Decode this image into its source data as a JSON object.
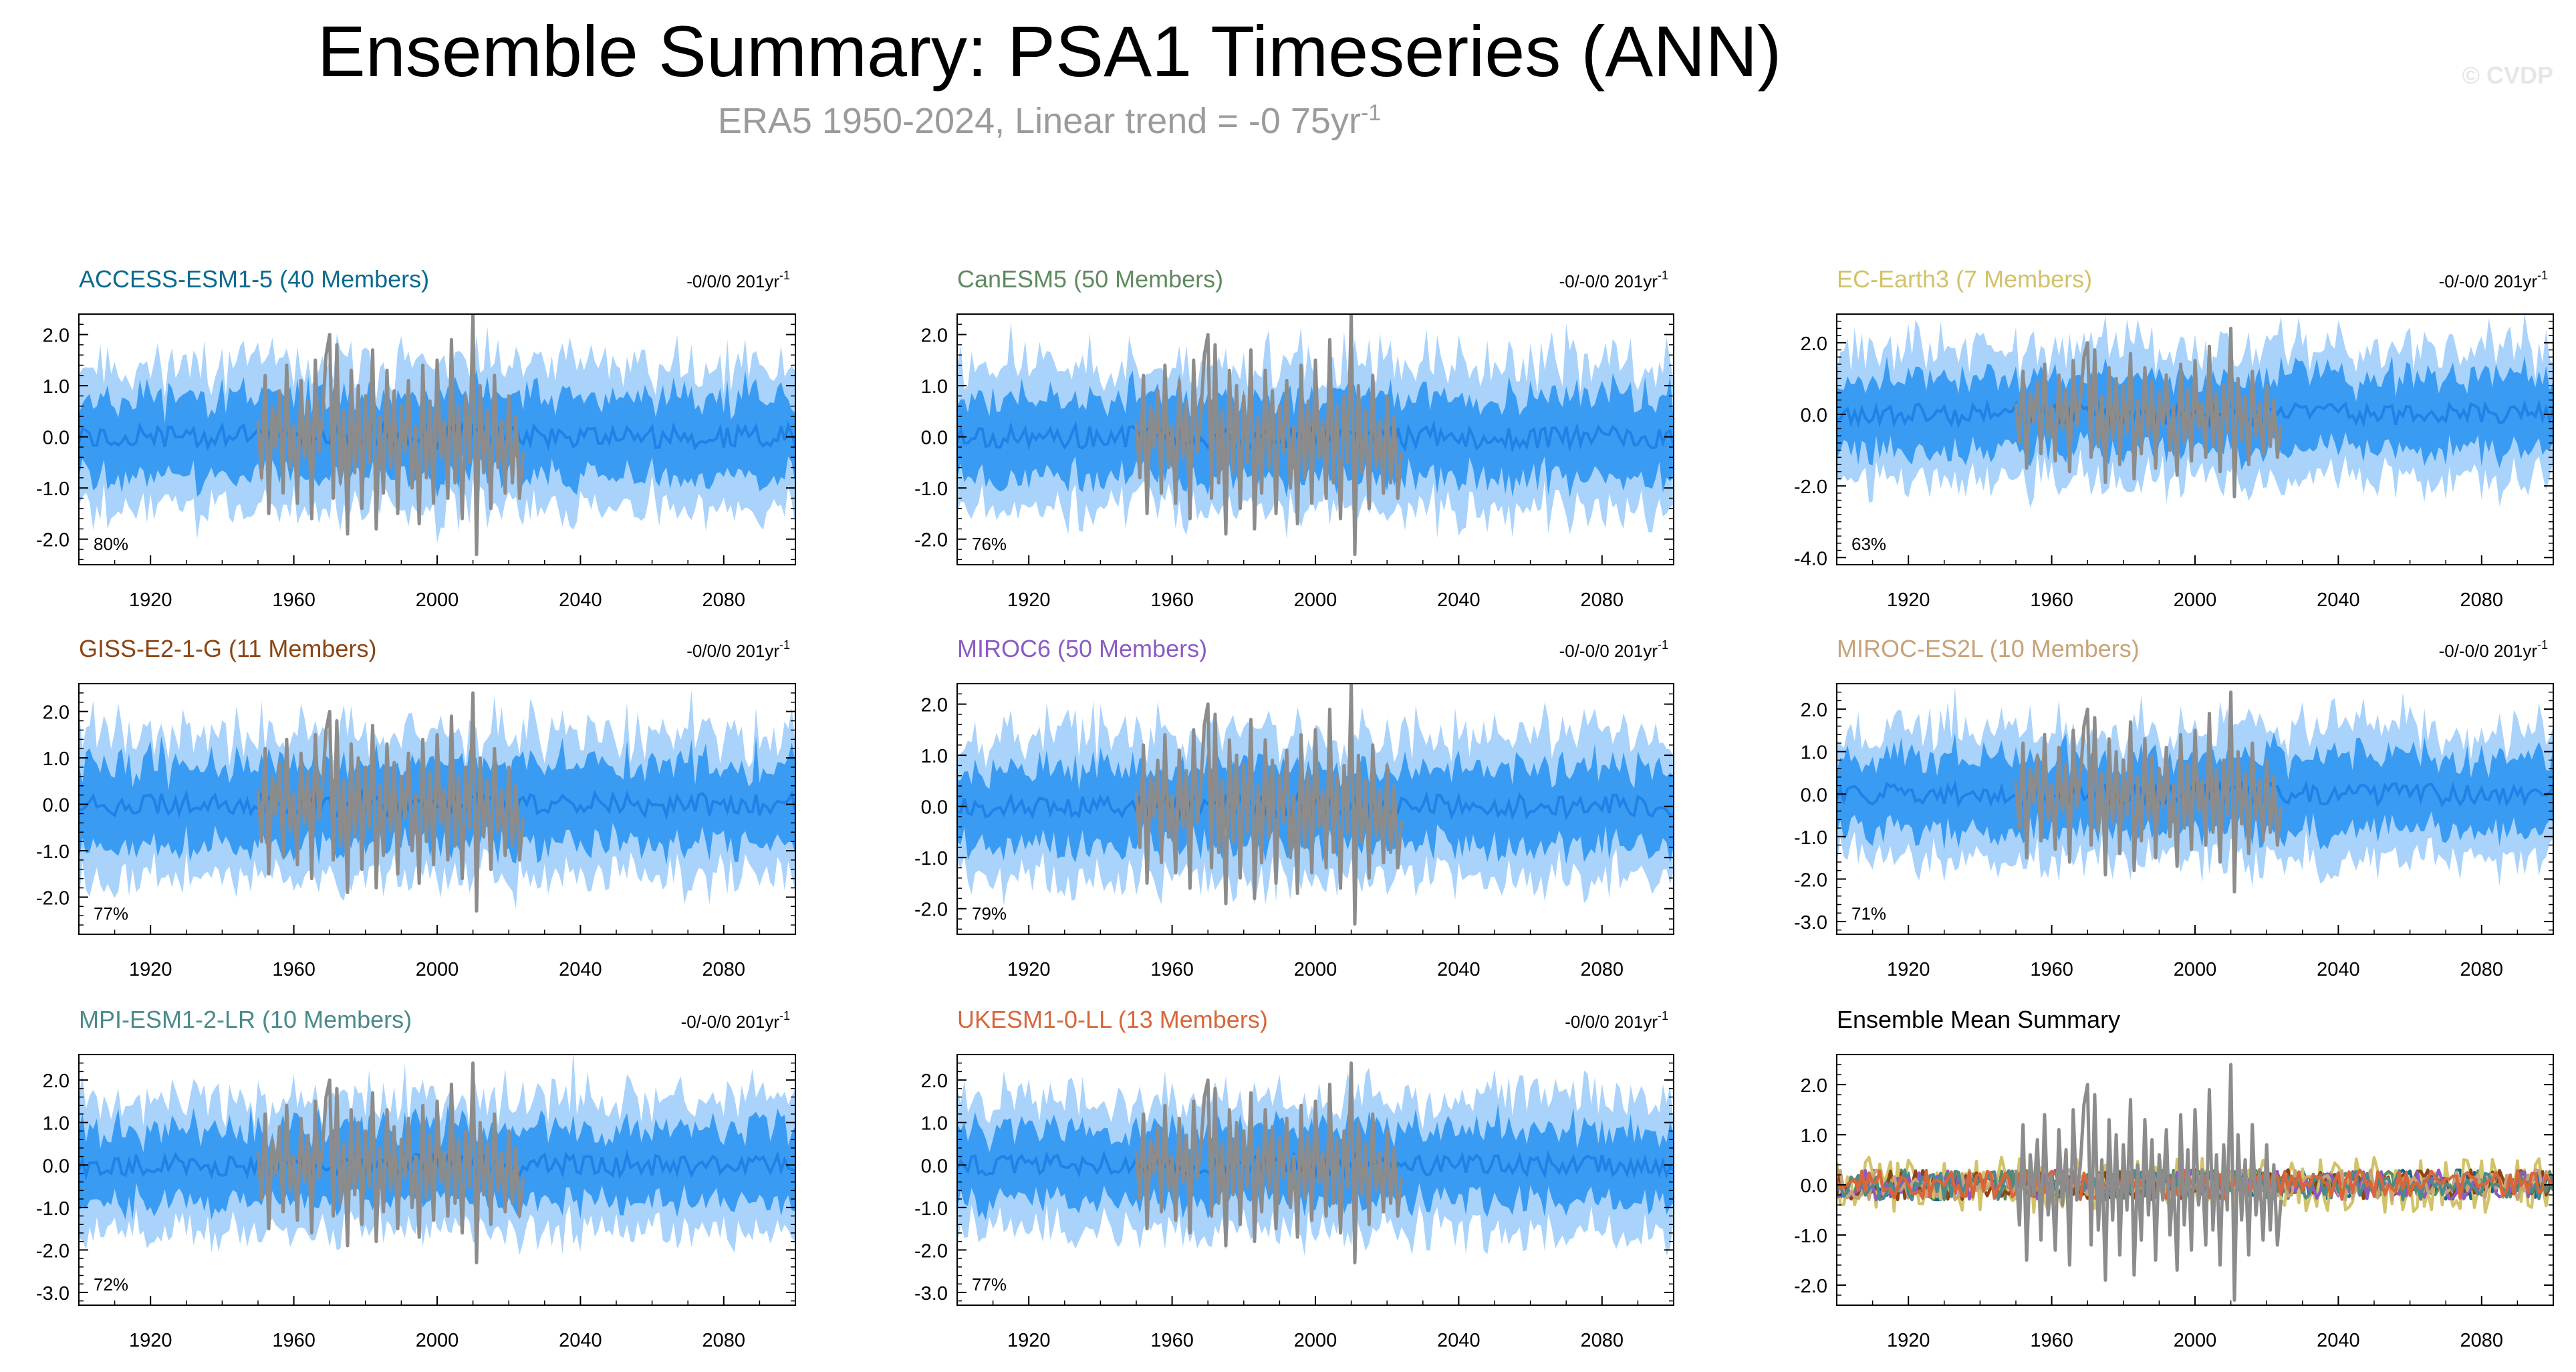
{
  "header": {
    "title": "Ensemble Summary: PSA1 Timeseries (ANN)",
    "subtitle_main": "ERA5 1950-2024, Linear trend = -0 75yr",
    "subtitle_exp": "-1",
    "watermark": "© CVDP"
  },
  "colors": {
    "inner_band": "#3a9bf3",
    "outer_band": "#a9d3fb",
    "ensemble_mean": "#1e82e6",
    "observed": "#8c8c8c"
  },
  "chart_data": [
    {
      "type": "area",
      "title": "ACCESS-ESM1-5 (40 Members)",
      "title_color": "#0b6a8f",
      "trend": "-0/0/0 201yr",
      "trend_exp": "-1",
      "percent": "80%",
      "xlim": [
        1900,
        2100
      ],
      "ylim": [
        -2.5,
        2.4
      ],
      "xticks": [
        "1920",
        "1960",
        "2000",
        "2040",
        "2080"
      ],
      "yticks": [
        "2.0",
        "1.0",
        "0.0",
        "-1.0",
        "-2.0"
      ],
      "amp": 1.0,
      "seed": 11
    },
    {
      "type": "area",
      "title": "CanESM5 (50 Members)",
      "title_color": "#5e8a5e",
      "trend": "-0/-0/0 201yr",
      "trend_exp": "-1",
      "percent": "76%",
      "xlim": [
        1900,
        2100
      ],
      "ylim": [
        -2.5,
        2.4
      ],
      "xticks": [
        "1920",
        "1960",
        "2000",
        "2040",
        "2080"
      ],
      "yticks": [
        "2.0",
        "1.0",
        "0.0",
        "-1.0",
        "-2.0"
      ],
      "amp": 1.0,
      "seed": 23
    },
    {
      "type": "area",
      "title": "EC-Earth3 (7 Members)",
      "title_color": "#d2c26a",
      "trend": "-0/-0/0 201yr",
      "trend_exp": "-1",
      "percent": "63%",
      "xlim": [
        1900,
        2100
      ],
      "ylim": [
        -4.2,
        2.8
      ],
      "xticks": [
        "1920",
        "1960",
        "2000",
        "2040",
        "2080"
      ],
      "yticks": [
        "2.0",
        "0.0",
        "-2.0",
        "-4.0"
      ],
      "amp": 1.3,
      "seed": 37
    },
    {
      "type": "area",
      "title": "GISS-E2-1-G (11 Members)",
      "title_color": "#8b4513",
      "trend": "-0/0/0 201yr",
      "trend_exp": "-1",
      "percent": "77%",
      "xlim": [
        1900,
        2100
      ],
      "ylim": [
        -2.8,
        2.6
      ],
      "xticks": [
        "1920",
        "1960",
        "2000",
        "2040",
        "2080"
      ],
      "yticks": [
        "2.0",
        "1.0",
        "0.0",
        "-1.0",
        "-2.0"
      ],
      "amp": 1.1,
      "seed": 41
    },
    {
      "type": "area",
      "title": "MIROC6 (50 Members)",
      "title_color": "#8a5cc2",
      "trend": "-0/-0/0 201yr",
      "trend_exp": "-1",
      "percent": "79%",
      "xlim": [
        1900,
        2100
      ],
      "ylim": [
        -2.5,
        2.4
      ],
      "xticks": [
        "1920",
        "1960",
        "2000",
        "2040",
        "2080"
      ],
      "yticks": [
        "2.0",
        "1.0",
        "0.0",
        "-1.0",
        "-2.0"
      ],
      "amp": 1.0,
      "seed": 53
    },
    {
      "type": "area",
      "title": "MIROC-ES2L (10 Members)",
      "title_color": "#c8a27a",
      "trend": "-0/-0/0 201yr",
      "trend_exp": "-1",
      "percent": "71%",
      "xlim": [
        1900,
        2100
      ],
      "ylim": [
        -3.3,
        2.6
      ],
      "xticks": [
        "1920",
        "1960",
        "2000",
        "2040",
        "2080"
      ],
      "yticks": [
        "2.0",
        "1.0",
        "0.0",
        "-1.0",
        "-2.0",
        "-3.0"
      ],
      "amp": 1.1,
      "seed": 67
    },
    {
      "type": "area",
      "title": "MPI-ESM1-2-LR (10 Members)",
      "title_color": "#4a8a8a",
      "trend": "-0/-0/0 201yr",
      "trend_exp": "-1",
      "percent": "72%",
      "xlim": [
        1900,
        2100
      ],
      "ylim": [
        -3.3,
        2.6
      ],
      "xticks": [
        "1920",
        "1960",
        "2000",
        "2040",
        "2080"
      ],
      "yticks": [
        "2.0",
        "1.0",
        "0.0",
        "-1.0",
        "-2.0",
        "-3.0"
      ],
      "amp": 1.1,
      "seed": 71
    },
    {
      "type": "area",
      "title": "UKESM1-0-LL (13 Members)",
      "title_color": "#d8663a",
      "trend": "-0/0/0 201yr",
      "trend_exp": "-1",
      "percent": "77%",
      "xlim": [
        1900,
        2100
      ],
      "ylim": [
        -3.3,
        2.6
      ],
      "xticks": [
        "1920",
        "1960",
        "2000",
        "2040",
        "2080"
      ],
      "yticks": [
        "2.0",
        "1.0",
        "0.0",
        "-1.0",
        "-2.0",
        "-3.0"
      ],
      "amp": 1.1,
      "seed": 83
    },
    {
      "type": "line",
      "title": "Ensemble Mean Summary",
      "title_color": "#000000",
      "xlim": [
        1900,
        2100
      ],
      "ylim": [
        -2.4,
        2.6
      ],
      "xticks": [
        "1920",
        "1960",
        "2000",
        "2040",
        "2080"
      ],
      "yticks": [
        "2.0",
        "1.0",
        "0.0",
        "-1.0",
        "-2.0"
      ],
      "series": [
        {
          "name": "ACCESS-ESM1-5",
          "color": "#0b6a8f"
        },
        {
          "name": "CanESM5",
          "color": "#5e8a5e"
        },
        {
          "name": "EC-Earth3",
          "color": "#d2c26a"
        },
        {
          "name": "GISS-E2-1-G",
          "color": "#8b4513"
        },
        {
          "name": "MIROC6",
          "color": "#8a5cc2"
        },
        {
          "name": "MIROC-ES2L",
          "color": "#c8a27a"
        },
        {
          "name": "MPI-ESM1-2-LR",
          "color": "#4a8a8a"
        },
        {
          "name": "UKESM1-0-LL",
          "color": "#d8663a"
        }
      ],
      "seed": 97
    }
  ],
  "observed": {
    "name": "ERA5",
    "start_year": 1950,
    "values": [
      0.3,
      -0.8,
      1.2,
      -1.5,
      0.6,
      -0.2,
      0.9,
      -1.1,
      1.4,
      -0.6,
      0.2,
      -1.3,
      1.1,
      -0.4,
      0.7,
      -1.6,
      1.5,
      -0.3,
      0.4,
      1.6,
      2.0,
      -1.2,
      1.8,
      -0.9,
      0.5,
      -1.9,
      1.3,
      -0.7,
      1.0,
      -1.4,
      0.8,
      -0.5,
      1.7,
      -1.8,
      0.4,
      -1.1,
      1.3,
      -0.6,
      0.9,
      -1.5,
      0.6,
      -0.3,
      1.1,
      -1.0,
      0.2,
      -1.7,
      1.4,
      -0.8,
      0.7,
      -1.3,
      1.5,
      -0.4,
      0.3,
      -1.2,
      1.9,
      -0.9,
      0.6,
      -1.6,
      0.8,
      -0.5,
      2.4,
      -2.3,
      1.0,
      -0.7,
      0.5,
      -1.4,
      1.2,
      -0.6,
      0.3,
      -1.1,
      0.8,
      -0.9,
      0.4,
      -1.2,
      -0.3
    ]
  }
}
